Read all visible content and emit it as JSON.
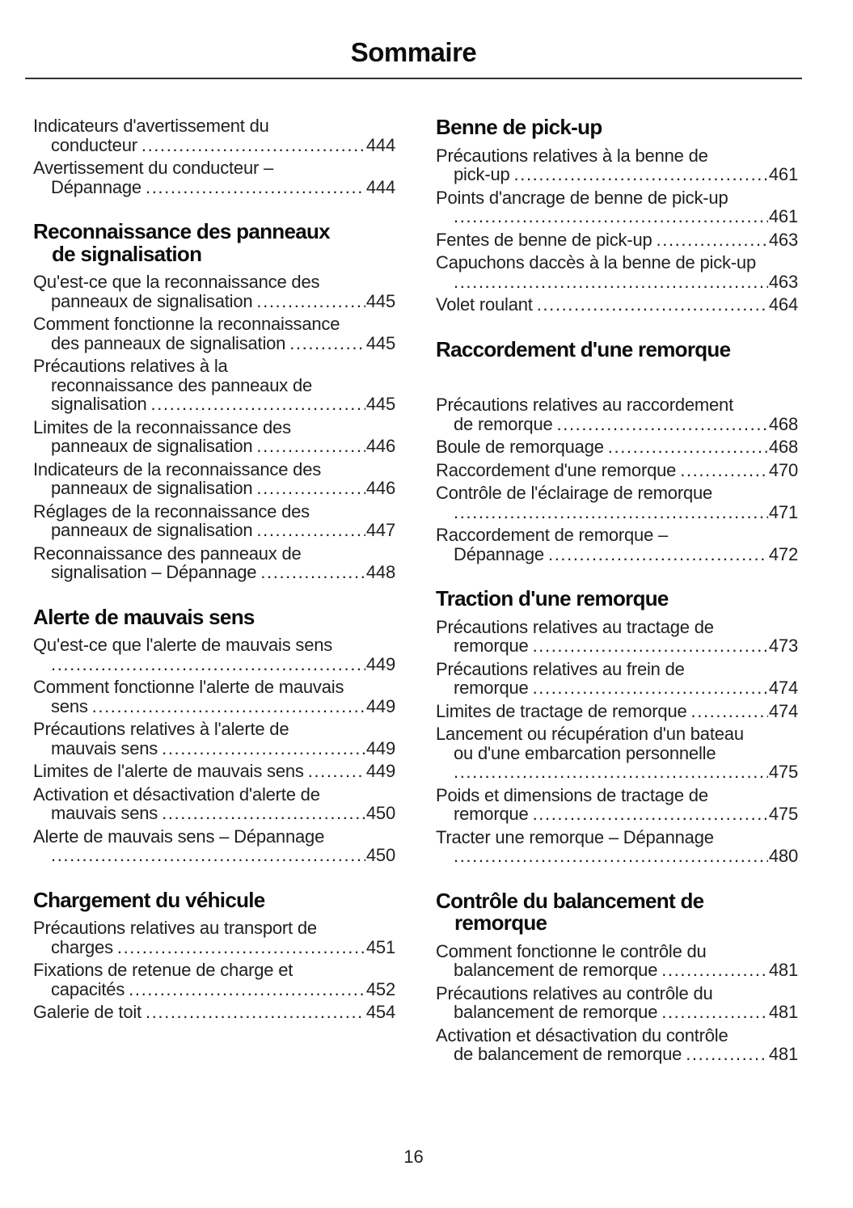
{
  "page": {
    "title": "Sommaire",
    "page_number": "16"
  },
  "columns": [
    {
      "sections": [
        {
          "heading": null,
          "entries": [
            {
              "lines": [
                "Indicateurs d'avertissement du",
                "conducteur"
              ],
              "page": "444"
            },
            {
              "lines": [
                "Avertissement du conducteur –",
                "Dépannage"
              ],
              "page": "444"
            }
          ]
        },
        {
          "heading": [
            "Reconnaissance des panneaux",
            "de signalisation"
          ],
          "entries": [
            {
              "lines": [
                "Qu'est-ce que la reconnaissance des",
                "panneaux de signalisation"
              ],
              "page": "445"
            },
            {
              "lines": [
                "Comment fonctionne la reconnaissance",
                "des panneaux de signalisation"
              ],
              "page": "445"
            },
            {
              "lines": [
                "Précautions relatives à la",
                "reconnaissance des panneaux de",
                "signalisation"
              ],
              "page": "445"
            },
            {
              "lines": [
                "Limites de la reconnaissance des",
                "panneaux de signalisation"
              ],
              "page": "446"
            },
            {
              "lines": [
                "Indicateurs de la reconnaissance des",
                "panneaux de signalisation"
              ],
              "page": "446"
            },
            {
              "lines": [
                "Réglages de la reconnaissance des",
                "panneaux de signalisation"
              ],
              "page": "447"
            },
            {
              "lines": [
                "Reconnaissance des panneaux de",
                "signalisation – Dépannage"
              ],
              "page": "448"
            }
          ]
        },
        {
          "heading": [
            "Alerte de mauvais sens"
          ],
          "entries": [
            {
              "lines": [
                "Qu'est-ce que l'alerte de mauvais sens",
                ""
              ],
              "page": "449"
            },
            {
              "lines": [
                "Comment fonctionne l'alerte de mauvais",
                "sens"
              ],
              "page": "449"
            },
            {
              "lines": [
                "Précautions relatives à l'alerte de",
                "mauvais sens"
              ],
              "page": "449"
            },
            {
              "lines": [
                "Limites de l'alerte de mauvais sens"
              ],
              "page": "449"
            },
            {
              "lines": [
                "Activation et désactivation d'alerte de",
                "mauvais sens"
              ],
              "page": "450"
            },
            {
              "lines": [
                "Alerte de mauvais sens – Dépannage",
                ""
              ],
              "page": "450"
            }
          ]
        },
        {
          "heading": [
            "Chargement du véhicule"
          ],
          "entries": [
            {
              "lines": [
                "Précautions relatives au transport de",
                "charges"
              ],
              "page": "451"
            },
            {
              "lines": [
                "Fixations de retenue de charge et",
                "capacités"
              ],
              "page": "452"
            },
            {
              "lines": [
                "Galerie de toit"
              ],
              "page": "454"
            }
          ]
        }
      ]
    },
    {
      "sections": [
        {
          "heading": [
            "Benne de pick-up"
          ],
          "entries": [
            {
              "lines": [
                "Précautions relatives à la benne de",
                "pick-up"
              ],
              "page": "461"
            },
            {
              "lines": [
                "Points d'ancrage de benne de pick-up",
                ""
              ],
              "page": "461"
            },
            {
              "lines": [
                "Fentes de benne de pick-up"
              ],
              "page": "463"
            },
            {
              "lines": [
                "Capuchons daccès à la benne de pick-up",
                ""
              ],
              "page": "463"
            },
            {
              "lines": [
                "Volet roulant"
              ],
              "page": "464"
            }
          ]
        },
        {
          "heading": [
            "Raccordement d'une remorque"
          ],
          "gap_after_heading": true,
          "entries": [
            {
              "lines": [
                "Précautions relatives au raccordement",
                "de remorque"
              ],
              "page": "468"
            },
            {
              "lines": [
                "Boule de remorquage"
              ],
              "page": "468"
            },
            {
              "lines": [
                "Raccordement d'une remorque"
              ],
              "page": "470"
            },
            {
              "lines": [
                "Contrôle de l'éclairage de remorque",
                ""
              ],
              "page": "471"
            },
            {
              "lines": [
                "Raccordement de remorque –",
                "Dépannage"
              ],
              "page": "472"
            }
          ]
        },
        {
          "heading": [
            "Traction d'une remorque"
          ],
          "entries": [
            {
              "lines": [
                "Précautions relatives au tractage de",
                "remorque"
              ],
              "page": "473"
            },
            {
              "lines": [
                "Précautions relatives au frein de",
                "remorque"
              ],
              "page": "474"
            },
            {
              "lines": [
                "Limites de tractage de remorque"
              ],
              "page": "474"
            },
            {
              "lines": [
                "Lancement ou récupération d'un bateau",
                "ou d'une embarcation personnelle",
                ""
              ],
              "page": "475"
            },
            {
              "lines": [
                "Poids et dimensions de tractage de",
                "remorque"
              ],
              "page": "475"
            },
            {
              "lines": [
                "Tracter une remorque – Dépannage",
                ""
              ],
              "page": "480"
            }
          ]
        },
        {
          "heading": [
            "Contrôle du balancement de",
            "remorque"
          ],
          "entries": [
            {
              "lines": [
                "Comment fonctionne le contrôle du",
                "balancement de remorque"
              ],
              "page": "481"
            },
            {
              "lines": [
                "Précautions relatives au contrôle du",
                "balancement de remorque"
              ],
              "page": "481"
            },
            {
              "lines": [
                "Activation et désactivation du contrôle",
                "de balancement de remorque"
              ],
              "page": "481"
            }
          ]
        }
      ]
    }
  ]
}
